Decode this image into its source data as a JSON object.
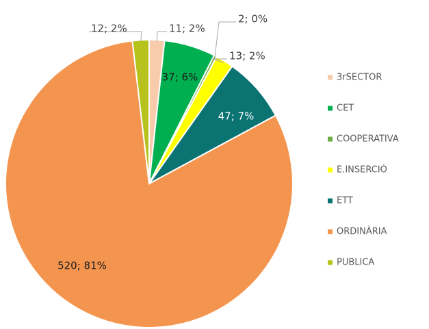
{
  "chart_data": {
    "type": "pie",
    "categories": [
      "3rSECTOR",
      "CET",
      "COOPERATIVA",
      "E.INSERCIÓ",
      "ETT",
      "ORDINÀRIA",
      "PUBLICA"
    ],
    "values": [
      11,
      37,
      2,
      13,
      47,
      520,
      12
    ],
    "value_labels": [
      "11; 2%",
      "37; 6%",
      "2; 0%",
      "13; 2%",
      "47; 7%",
      "520; 81%",
      "12; 2%"
    ],
    "colors": [
      "#f8cbad",
      "#00b050",
      "#70ad47",
      "#ffff00",
      "#0b7372",
      "#f4954f",
      "#b8c21c"
    ],
    "legend": "right"
  }
}
